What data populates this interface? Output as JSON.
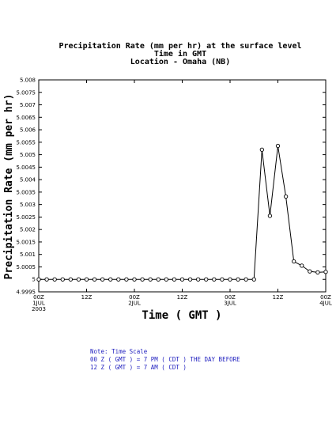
{
  "chart_data": {
    "type": "line",
    "title": [
      "Precipitation Rate (mm per hr) at the surface level",
      "Time in GMT",
      "Location - Omaha (NB)"
    ],
    "xlabel": "Time ( GMT )",
    "ylabel": "Precipitation Rate (mm per hr)",
    "ylim": [
      4.9995,
      5.008
    ],
    "yticks": [
      "5.008",
      "5.0075",
      "5.007",
      "5.0065",
      "5.006",
      "5.0055",
      "5.005",
      "5.0045",
      "5.004",
      "5.0035",
      "5.003",
      "5.0025",
      "5.002",
      "5.0015",
      "5.001",
      "5.0005",
      "5",
      "4.9995"
    ],
    "xlim": [
      0,
      72
    ],
    "xticks": [
      {
        "x": 0,
        "lines": [
          "00Z",
          "1JUL",
          "2003"
        ]
      },
      {
        "x": 12,
        "lines": [
          "12Z"
        ]
      },
      {
        "x": 24,
        "lines": [
          "00Z",
          "2JUL"
        ]
      },
      {
        "x": 36,
        "lines": [
          "12Z"
        ]
      },
      {
        "x": 48,
        "lines": [
          "00Z",
          "3JUL"
        ]
      },
      {
        "x": 60,
        "lines": [
          "12Z"
        ]
      },
      {
        "x": 72,
        "lines": [
          "00Z",
          "4JUL"
        ]
      }
    ],
    "series": [
      {
        "x": [
          0,
          2,
          4,
          6,
          8,
          10,
          12,
          14,
          16,
          18,
          20,
          22,
          24,
          26,
          28,
          30,
          32,
          34,
          36,
          38,
          40,
          42,
          44,
          46,
          48,
          50,
          52,
          54,
          56,
          58,
          60,
          62,
          64,
          66,
          68,
          70,
          72
        ],
        "values": [
          5,
          5,
          5,
          5,
          5,
          5,
          5,
          5,
          5,
          5,
          5,
          5,
          5,
          5,
          5,
          5,
          5,
          5,
          5,
          5,
          5,
          5,
          5,
          5,
          5,
          5,
          5,
          5,
          5.0052,
          5.00255,
          5.00535,
          5.00332,
          5.00072,
          5.00055,
          5.00032,
          5.00028,
          5.0003
        ]
      }
    ]
  },
  "note": {
    "line1": "Note: Time Scale",
    "line2": "00 Z ( GMT ) = 7 PM ( CDT ) THE DAY BEFORE",
    "line3": "12 Z ( GMT ) = 7 AM ( CDT )"
  }
}
